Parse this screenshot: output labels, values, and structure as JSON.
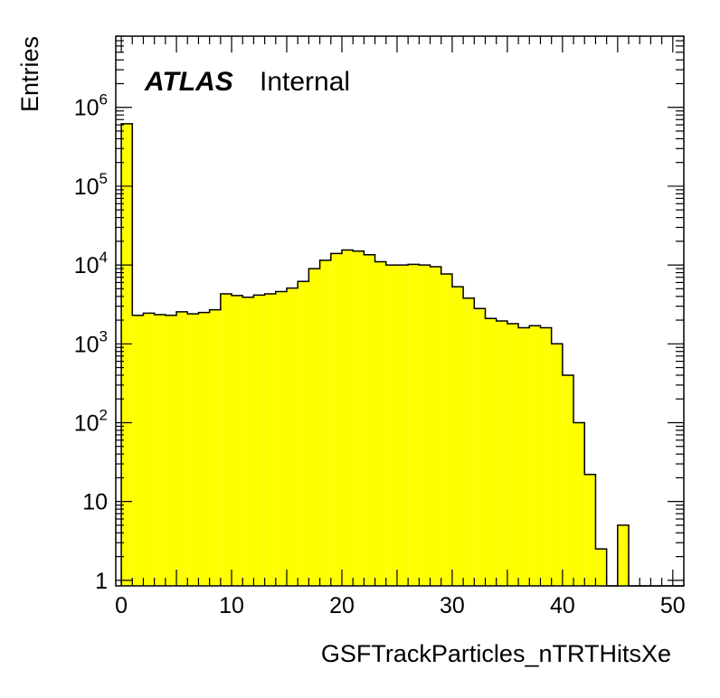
{
  "label": {
    "experiment": "ATLAS",
    "status": "Internal"
  },
  "chart_data": {
    "type": "bar",
    "style": "step-filled histogram",
    "fill_color": "#ffff00",
    "line_color": "#000000",
    "xlabel": "GSFTrackParticles_nTRTHitsXe",
    "ylabel": "Entries",
    "xlim": [
      -0.5,
      51
    ],
    "ylim": [
      0.85,
      8000000
    ],
    "yscale": "log",
    "bin_width": 1,
    "x_ticks": [
      0,
      10,
      20,
      30,
      40,
      50
    ],
    "y_ticks": [
      {
        "value": 1,
        "label": "1"
      },
      {
        "value": 10,
        "label": "10"
      },
      {
        "value": 100,
        "label": "10",
        "exp": "2"
      },
      {
        "value": 1000,
        "label": "10",
        "exp": "3"
      },
      {
        "value": 10000,
        "label": "10",
        "exp": "4"
      },
      {
        "value": 100000,
        "label": "10",
        "exp": "5"
      },
      {
        "value": 1000000,
        "label": "10",
        "exp": "6"
      }
    ],
    "x": [
      0,
      1,
      2,
      3,
      4,
      5,
      6,
      7,
      8,
      9,
      10,
      11,
      12,
      13,
      14,
      15,
      16,
      17,
      18,
      19,
      20,
      21,
      22,
      23,
      24,
      25,
      26,
      27,
      28,
      29,
      30,
      31,
      32,
      33,
      34,
      35,
      36,
      37,
      38,
      39,
      40,
      41,
      42,
      43,
      44,
      45,
      46,
      47,
      48,
      49,
      50
    ],
    "values": [
      620000,
      2300,
      2450,
      2350,
      2300,
      2550,
      2400,
      2500,
      2700,
      4300,
      4100,
      3900,
      4150,
      4300,
      4600,
      5100,
      6200,
      9000,
      11500,
      14000,
      15500,
      15000,
      13500,
      11000,
      10000,
      10000,
      10200,
      10000,
      9500,
      7700,
      5300,
      3800,
      2800,
      2100,
      1950,
      1800,
      1600,
      1700,
      1600,
      1000,
      400,
      100,
      22,
      2.5,
      0,
      5,
      0,
      0,
      0,
      0,
      0
    ]
  }
}
